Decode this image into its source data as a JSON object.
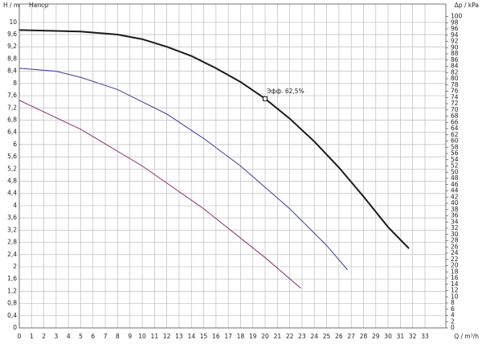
{
  "chart_data": {
    "type": "line",
    "y_label": "H / m",
    "y_sublabel": "Напор",
    "y2_label": "Δp / kPa",
    "x_label": "Q / m³/h",
    "xlim": [
      0,
      34.7
    ],
    "ylim": [
      0,
      10.6
    ],
    "y2lim": [
      0,
      104
    ],
    "xticks": [
      0,
      1,
      2,
      3,
      4,
      5,
      6,
      7,
      8,
      9,
      10,
      11,
      12,
      13,
      14,
      15,
      16,
      17,
      18,
      19,
      20,
      21,
      22,
      23,
      24,
      25,
      26,
      27,
      28,
      29,
      30,
      31,
      32,
      33
    ],
    "yticks": [
      0,
      {
        "value": 0.4,
        "label": "0,4"
      },
      {
        "value": 0.8,
        "label": "0,8"
      },
      {
        "value": 1.2,
        "label": "1,2"
      },
      {
        "value": 1.6,
        "label": "1,6"
      },
      2,
      {
        "value": 2.4,
        "label": "2,4"
      },
      {
        "value": 2.8,
        "label": "2,8"
      },
      {
        "value": 3.2,
        "label": "3,2"
      },
      {
        "value": 3.6,
        "label": "3,6"
      },
      4,
      {
        "value": 4.4,
        "label": "4,4"
      },
      {
        "value": 4.8,
        "label": "4,8"
      },
      {
        "value": 5.2,
        "label": "5,2"
      },
      {
        "value": 5.6,
        "label": "5,6"
      },
      6,
      {
        "value": 6.4,
        "label": "6,4"
      },
      {
        "value": 6.8,
        "label": "6,8"
      },
      {
        "value": 7.2,
        "label": "7,2"
      },
      {
        "value": 7.6,
        "label": "7,6"
      },
      8,
      {
        "value": 8.4,
        "label": "8,4"
      },
      {
        "value": 8.8,
        "label": "8,8"
      },
      {
        "value": 9.2,
        "label": "9,2"
      },
      {
        "value": 9.6,
        "label": "9,6"
      },
      10
    ],
    "y2ticks": [
      0,
      2,
      4,
      6,
      8,
      10,
      12,
      14,
      16,
      18,
      20,
      22,
      24,
      26,
      28,
      30,
      32,
      34,
      36,
      38,
      40,
      42,
      44,
      46,
      48,
      50,
      52,
      54,
      56,
      58,
      60,
      62,
      64,
      66,
      68,
      70,
      72,
      74,
      76,
      78,
      80,
      82,
      84,
      86,
      88,
      90,
      92,
      94,
      96,
      98,
      100
    ],
    "grid": true,
    "series": [
      {
        "color": "#1a1a1a",
        "x": [
          0,
          5,
          8,
          10,
          12,
          14,
          16,
          18,
          20,
          22,
          24,
          26,
          28,
          30,
          31.7
        ],
        "values": [
          9.75,
          9.7,
          9.6,
          9.45,
          9.2,
          8.9,
          8.5,
          8.05,
          7.5,
          6.85,
          6.1,
          5.25,
          4.3,
          3.3,
          2.6
        ]
      },
      {
        "color": "#3b3b9c",
        "x": [
          0,
          3,
          5,
          8,
          10,
          12,
          15,
          18,
          20,
          22,
          25,
          26.7
        ],
        "values": [
          8.5,
          8.4,
          8.2,
          7.8,
          7.4,
          7.0,
          6.2,
          5.3,
          4.6,
          3.9,
          2.7,
          1.9
        ]
      },
      {
        "color": "#8a2d6d",
        "x": [
          0,
          5,
          10,
          15,
          20,
          22.9
        ],
        "values": [
          7.45,
          6.5,
          5.3,
          3.9,
          2.3,
          1.3
        ]
      }
    ],
    "annotation": {
      "text": "Эфф. 62,5%",
      "x": 20,
      "y": 7.5
    }
  }
}
